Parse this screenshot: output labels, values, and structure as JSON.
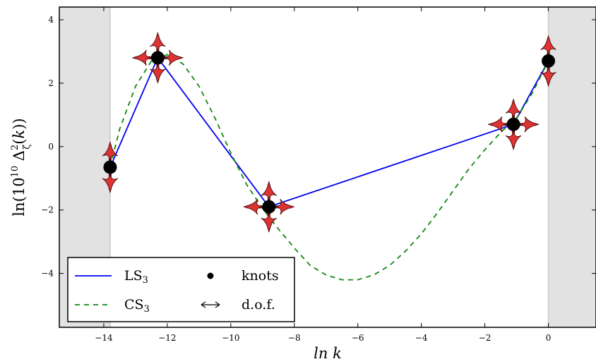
{
  "chart_data": {
    "type": "line",
    "title": "",
    "xlabel": "ln k",
    "ylabel": "ln(10^10 Δζ²(k))",
    "xlim": [
      -15.4,
      1.5
    ],
    "ylim": [
      -5.7,
      4.4
    ],
    "x_ticks": [
      -14,
      -12,
      -10,
      -8,
      -6,
      -4,
      -2,
      0
    ],
    "x_tick_labels": [
      "−14",
      "−12",
      "−10",
      "−8",
      "−6",
      "−4",
      "−2",
      "0"
    ],
    "y_ticks": [
      -4,
      -2,
      0,
      2,
      4
    ],
    "y_tick_labels": [
      "−4",
      "−2",
      "0",
      "2",
      "4"
    ],
    "grid": false,
    "legend_placement": "lower-left",
    "shaded_regions": [
      {
        "x": [
          -15.4,
          -13.8
        ],
        "color": "#e2e2e2"
      },
      {
        "x": [
          0,
          1.5
        ],
        "color": "#e2e2e2"
      }
    ],
    "series": [
      {
        "name": "LS",
        "name_sub": "3",
        "style": "solid",
        "color": "#0000ee",
        "x": [
          -13.8,
          -12.3,
          -8.8,
          -1.1,
          0
        ],
        "y": [
          -0.65,
          2.8,
          -1.9,
          0.7,
          2.7
        ]
      },
      {
        "name": "CS",
        "name_sub": "3",
        "style": "dashed",
        "color": "#118811",
        "x": [
          -13.8,
          -13.5,
          -13.0,
          -12.5,
          -12.0,
          -11.5,
          -11.0,
          -10.5,
          -10.0,
          -9.5,
          -9.0,
          -8.5,
          -8.0,
          -7.5,
          -7.0,
          -6.5,
          -6.0,
          -5.5,
          -5.0,
          -4.5,
          -4.0,
          -3.5,
          -3.0,
          -2.5,
          -2.0,
          -1.5,
          -1.0,
          -0.5,
          0
        ],
        "y": [
          -0.65,
          0.55,
          1.9,
          2.7,
          2.9,
          2.6,
          1.9,
          0.9,
          -0.2,
          -1.2,
          -1.95,
          -2.6,
          -3.2,
          -3.75,
          -4.05,
          -4.2,
          -4.2,
          -4.05,
          -3.75,
          -3.3,
          -2.75,
          -2.1,
          -1.4,
          -0.7,
          -0.1,
          0.45,
          0.9,
          1.7,
          2.7
        ]
      }
    ],
    "knots": {
      "x": [
        -13.8,
        -12.3,
        -8.8,
        -1.1,
        0
      ],
      "y": [
        -0.65,
        2.8,
        -1.9,
        0.7,
        2.7
      ],
      "dof": [
        [
          "vertical"
        ],
        [
          "vertical",
          "horizontal"
        ],
        [
          "vertical",
          "horizontal"
        ],
        [
          "vertical",
          "horizontal"
        ],
        [
          "vertical"
        ]
      ]
    },
    "legend": [
      {
        "label": "LS",
        "sub": "3",
        "symbol": "line-solid",
        "color": "#0000ee"
      },
      {
        "label": "knots",
        "sub": "",
        "symbol": "dot",
        "color": "#000000"
      },
      {
        "label": "CS",
        "sub": "3",
        "symbol": "line-dashed",
        "color": "#118811"
      },
      {
        "label": "d.o.f.",
        "sub": "",
        "symbol": "double-arrow",
        "color": "#000000"
      }
    ],
    "arrow_color": "#dd3333"
  }
}
